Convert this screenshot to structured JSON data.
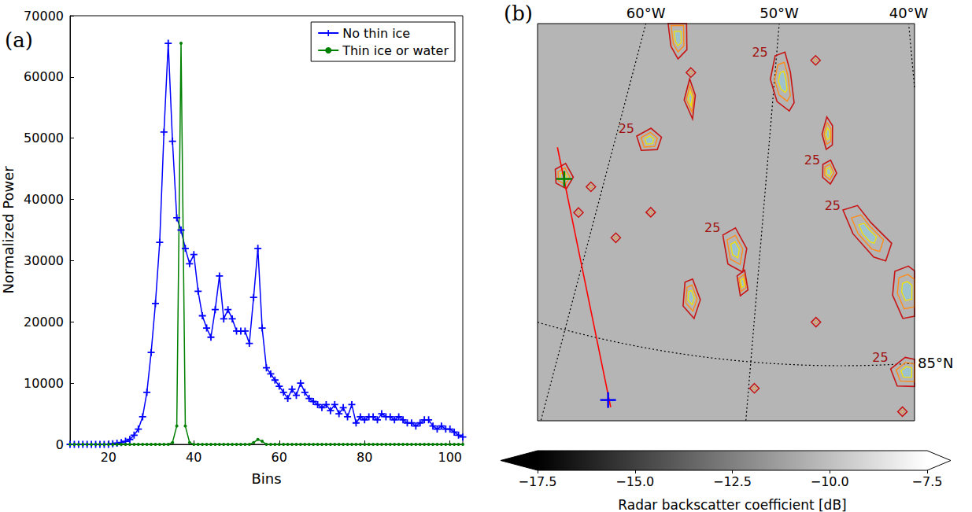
{
  "chart_data": [
    {
      "type": "line",
      "panel": "(a)",
      "x_label": "Bins",
      "y_label": "Normalized Power",
      "x": [
        11,
        12,
        13,
        14,
        15,
        16,
        17,
        18,
        19,
        20,
        21,
        22,
        23,
        24,
        25,
        26,
        27,
        28,
        29,
        30,
        31,
        32,
        33,
        34,
        35,
        36,
        37,
        38,
        39,
        40,
        41,
        42,
        43,
        44,
        45,
        46,
        47,
        48,
        49,
        50,
        51,
        52,
        53,
        54,
        55,
        56,
        57,
        58,
        59,
        60,
        61,
        62,
        63,
        64,
        65,
        66,
        67,
        68,
        69,
        70,
        71,
        72,
        73,
        74,
        75,
        76,
        77,
        78,
        79,
        80,
        81,
        82,
        83,
        84,
        85,
        86,
        87,
        88,
        89,
        90,
        91,
        92,
        93,
        94,
        95,
        96,
        97,
        98,
        99,
        100,
        101,
        102,
        103
      ],
      "series": [
        {
          "name": "No thin ice",
          "color": "#0000ff",
          "marker": "plus",
          "values": [
            0,
            0,
            0,
            0,
            0,
            0,
            0,
            0,
            0,
            0,
            100,
            200,
            300,
            500,
            800,
            1500,
            2500,
            4500,
            8500,
            15000,
            23000,
            33000,
            51000,
            65500,
            49500,
            37000,
            35000,
            32000,
            29500,
            31000,
            25000,
            21000,
            19000,
            17500,
            22000,
            27500,
            20500,
            22000,
            20500,
            18500,
            18500,
            18500,
            16500,
            24000,
            32000,
            19000,
            12500,
            11500,
            10500,
            9500,
            8500,
            7500,
            9000,
            8000,
            10000,
            8500,
            7500,
            7000,
            6500,
            6000,
            6500,
            5500,
            6500,
            5000,
            6000,
            4500,
            6500,
            3500,
            4500,
            4000,
            4500,
            4500,
            4000,
            5000,
            4500,
            4500,
            4000,
            4500,
            4000,
            3500,
            3500,
            3000,
            3500,
            4000,
            4000,
            3000,
            2500,
            3000,
            2500,
            2500,
            2000,
            1500,
            1200
          ]
        },
        {
          "name": "Thin ice or water",
          "color": "#008000",
          "marker": "point",
          "values": [
            0,
            0,
            0,
            0,
            0,
            0,
            0,
            0,
            0,
            0,
            0,
            0,
            0,
            0,
            0,
            0,
            0,
            0,
            0,
            0,
            0,
            0,
            0,
            0,
            300,
            3000,
            65500,
            3000,
            300,
            0,
            0,
            0,
            0,
            0,
            0,
            0,
            0,
            0,
            0,
            0,
            0,
            0,
            0,
            300,
            800,
            500,
            0,
            0,
            0,
            0,
            0,
            0,
            0,
            0,
            0,
            0,
            0,
            0,
            0,
            0,
            0,
            0,
            0,
            0,
            0,
            0,
            0,
            0,
            0,
            0,
            0,
            0,
            0,
            0,
            0,
            0,
            0,
            0,
            0,
            0,
            0,
            0,
            0,
            0,
            0,
            0,
            0,
            0,
            0,
            0,
            0,
            0,
            0
          ]
        }
      ],
      "xlim": [
        11,
        103
      ],
      "xticks": [
        20,
        40,
        60,
        80,
        100
      ],
      "ylim": [
        0,
        70000
      ],
      "yticks": [
        0,
        10000,
        20000,
        30000,
        40000,
        50000,
        60000,
        70000
      ],
      "grid": false,
      "legend": "upper right"
    },
    {
      "type": "map",
      "panel": "(b)",
      "meridians": [
        {
          "lon": -60,
          "label": "60°W"
        },
        {
          "lon": -50,
          "label": "50°W"
        },
        {
          "lon": -40,
          "label": "40°W"
        }
      ],
      "parallels": [
        {
          "lat": 85,
          "label": "85°N"
        }
      ],
      "track": {
        "color": "#ff0000",
        "points": [
          [
            -63.4,
            85.8
          ],
          [
            -56.8,
            84.7
          ]
        ]
      },
      "markers": [
        {
          "lon": -62.4,
          "lat": 85.67,
          "color": "#008000"
        },
        {
          "lon": -57.0,
          "lat": 84.73,
          "color": "#0000ff"
        }
      ],
      "contours": {
        "level": 25,
        "regions": [
          {
            "outline": [
              [
                -58.5,
                86.51
              ],
              [
                -57.1,
                86.53
              ],
              [
                -56.6,
                86.39
              ],
              [
                -57.1,
                86.34
              ],
              [
                -57.8,
                86.39
              ]
            ],
            "label": false
          },
          {
            "outline": [
              [
                -50.1,
                86.42
              ],
              [
                -49.4,
                86.44
              ],
              [
                -48.9,
                86.35
              ],
              [
                -48.5,
                86.21
              ],
              [
                -48.8,
                86.17
              ],
              [
                -49.7,
                86.21
              ],
              [
                -50.3,
                86.31
              ]
            ],
            "label": true
          },
          {
            "outline": [
              [
                -46.2,
                86.15
              ],
              [
                -45.8,
                86.11
              ],
              [
                -45.8,
                86.02
              ],
              [
                -46.2,
                86.0
              ],
              [
                -46.5,
                86.07
              ]
            ],
            "label": false
          },
          {
            "outline": [
              [
                -46.4,
                85.93
              ],
              [
                -45.9,
                85.95
              ],
              [
                -45.5,
                85.89
              ],
              [
                -45.9,
                85.84
              ],
              [
                -46.4,
                85.87
              ]
            ],
            "label": true
          },
          {
            "outline": [
              [
                -58.7,
                85.95
              ],
              [
                -57.9,
                86.0
              ],
              [
                -57.1,
                85.97
              ],
              [
                -57.2,
                85.91
              ],
              [
                -58.2,
                85.89
              ]
            ],
            "label": true
          },
          {
            "outline": [
              [
                -56.0,
                86.26
              ],
              [
                -55.4,
                86.19
              ],
              [
                -55.3,
                86.08
              ],
              [
                -56.1,
                86.16
              ]
            ],
            "label": false
          },
          {
            "outline": [
              [
                -45.1,
                85.72
              ],
              [
                -44.2,
                85.74
              ],
              [
                -43.4,
                85.66
              ],
              [
                -42.2,
                85.56
              ],
              [
                -42.6,
                85.48
              ],
              [
                -43.3,
                85.5
              ],
              [
                -44.5,
                85.61
              ]
            ],
            "label": true
          },
          {
            "outline": [
              [
                -42.1,
                85.43
              ],
              [
                -41.3,
                85.45
              ],
              [
                -40.6,
                85.4
              ],
              [
                -40.8,
                85.22
              ],
              [
                -41.8,
                85.21
              ],
              [
                -42.3,
                85.32
              ]
            ],
            "label": false
          },
          {
            "outline": [
              [
                -52.3,
                85.57
              ],
              [
                -51.6,
                85.61
              ],
              [
                -50.8,
                85.52
              ],
              [
                -50.9,
                85.41
              ],
              [
                -51.8,
                85.44
              ]
            ],
            "label": true
          },
          {
            "outline": [
              [
                -51.2,
                85.39
              ],
              [
                -50.8,
                85.42
              ],
              [
                -50.5,
                85.33
              ],
              [
                -50.9,
                85.3
              ]
            ],
            "label": false
          },
          {
            "outline": [
              [
                -54.1,
                85.33
              ],
              [
                -53.7,
                85.35
              ],
              [
                -53.1,
                85.26
              ],
              [
                -53.3,
                85.17
              ],
              [
                -54.0,
                85.22
              ]
            ],
            "label": false
          },
          {
            "outline": [
              [
                -63.1,
                85.7
              ],
              [
                -62.6,
                85.74
              ],
              [
                -61.9,
                85.69
              ],
              [
                -62.1,
                85.63
              ],
              [
                -62.8,
                85.64
              ]
            ],
            "label": false
          },
          {
            "outline": [
              [
                -42.6,
                84.98
              ],
              [
                -41.8,
                85.03
              ],
              [
                -41.0,
                85.01
              ],
              [
                -41.1,
                84.89
              ],
              [
                -42.3,
                84.9
              ]
            ],
            "label": true
          }
        ],
        "spots": [
          [
            -56.0,
            86.29
          ],
          [
            -47.1,
            86.41
          ],
          [
            -61.0,
            85.54
          ],
          [
            -60.7,
            85.67
          ],
          [
            -58.5,
            85.47
          ],
          [
            -56.8,
            85.62
          ],
          [
            -46.6,
            85.2
          ],
          [
            -49.7,
            84.88
          ],
          [
            -42.1,
            84.78
          ]
        ]
      },
      "colorbar": {
        "label": "Radar backscatter coefficient [dB]",
        "range": [
          -17.5,
          -7.5
        ],
        "ticks": [
          {
            "value": -17.5,
            "label": "−17.5"
          },
          {
            "value": -15,
            "label": "−15.0"
          },
          {
            "value": -12.5,
            "label": "−12.5"
          },
          {
            "value": -10,
            "label": "−10.0"
          },
          {
            "value": -7.5,
            "label": "−7.5"
          }
        ]
      }
    }
  ]
}
